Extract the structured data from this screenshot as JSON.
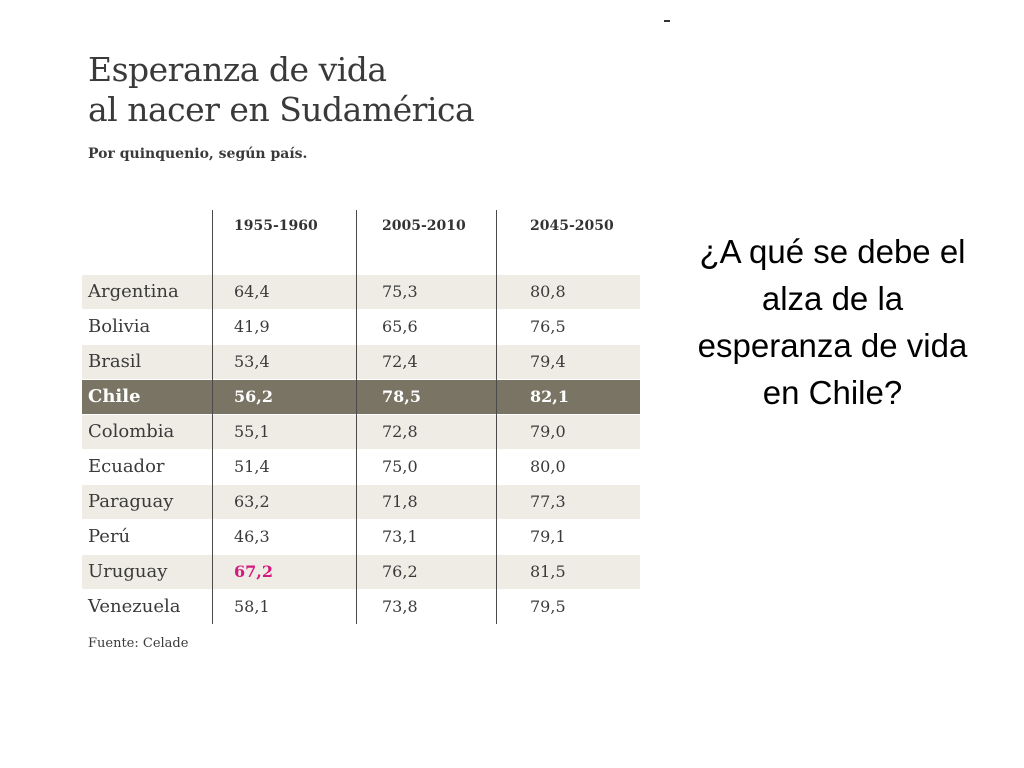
{
  "slide": {
    "question": "¿A qué se debe el alza de la esperanza de vida en Chile?"
  },
  "chart_data": {
    "type": "table",
    "title_line1": "Esperanza de vida",
    "title_line2": "al nacer en Sudamérica",
    "subtitle": "Por quinquenio, según país.",
    "source": "Fuente: Celade",
    "columns": [
      "1955-1960",
      "2005-2010",
      "2045-2050"
    ],
    "rows": [
      {
        "country": "Argentina",
        "values": [
          "64,4",
          "75,3",
          "80,8"
        ]
      },
      {
        "country": "Bolivia",
        "values": [
          "41,9",
          "65,6",
          "76,5"
        ]
      },
      {
        "country": "Brasil",
        "values": [
          "53,4",
          "72,4",
          "79,4"
        ]
      },
      {
        "country": "Chile",
        "values": [
          "56,2",
          "78,5",
          "82,1"
        ]
      },
      {
        "country": "Colombia",
        "values": [
          "55,1",
          "72,8",
          "79,0"
        ]
      },
      {
        "country": "Ecuador",
        "values": [
          "51,4",
          "75,0",
          "80,0"
        ]
      },
      {
        "country": "Paraguay",
        "values": [
          "63,2",
          "71,8",
          "77,3"
        ]
      },
      {
        "country": "Perú",
        "values": [
          "46,3",
          "73,1",
          "79,1"
        ]
      },
      {
        "country": "Uruguay",
        "values": [
          "67,2",
          "76,2",
          "81,5"
        ]
      },
      {
        "country": "Venezuela",
        "values": [
          "58,1",
          "73,8",
          "79,5"
        ]
      }
    ],
    "highlighted_row": "Chile",
    "highlight_color": "#7a7464",
    "emphasis_color": "#d4197e",
    "emphasized_cell": {
      "country": "Uruguay",
      "column": "1955-1960"
    }
  }
}
